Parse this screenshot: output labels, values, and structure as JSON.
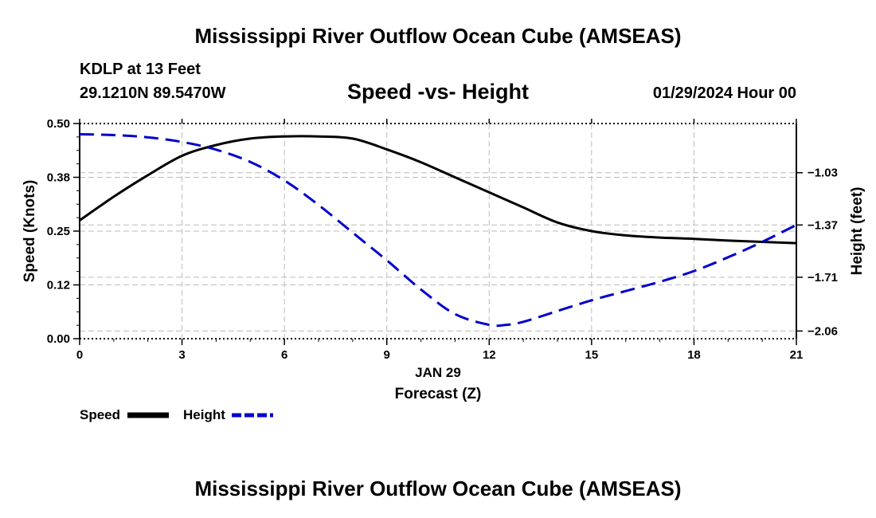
{
  "header": {
    "title": "Mississippi River Outflow Ocean Cube (AMSEAS)",
    "station": "KDLP at 13 Feet",
    "coords": "29.1210N  89.5470W",
    "subtitle": "Speed -vs- Height",
    "datetime": "01/29/2024 Hour 00"
  },
  "footer": {
    "title": "Mississippi River Outflow Ocean Cube (AMSEAS)"
  },
  "colors": {
    "speed": "#000000",
    "height": "#0000cc",
    "grid": "#bbbbbb"
  },
  "chart_data": {
    "type": "line",
    "title": "Speed -vs- Height",
    "xlabel": "Forecast (Z)",
    "xlabel_date": "JAN 29",
    "ylabel_left": "Speed (Knots)",
    "ylabel_right": "Height (feet)",
    "x_ticks": [
      0,
      3,
      6,
      9,
      12,
      15,
      18,
      21
    ],
    "x_tick_labels": [
      "0",
      "3",
      "6",
      "9",
      "12",
      "15",
      "18",
      "21"
    ],
    "xlim": [
      0,
      21
    ],
    "ylim_left": [
      0,
      0.5
    ],
    "y_left_ticks": [
      0.0,
      0.125,
      0.25,
      0.375,
      0.5
    ],
    "y_left_tick_labels": [
      "0.00",
      "0.12",
      "0.25",
      "0.38",
      "0.50"
    ],
    "ylim_right": [
      -2.11,
      -0.71
    ],
    "y_right_ticks": [
      -2.06,
      -1.71,
      -1.37,
      -1.03
    ],
    "y_right_tick_labels": [
      "−2.06",
      "−1.71",
      "−1.37",
      "−1.03"
    ],
    "grid": true,
    "legend_position": "bottom-left",
    "series": [
      {
        "name": "Speed",
        "axis": "left",
        "style": "solid",
        "x": [
          0,
          1,
          2,
          3,
          4,
          5,
          6,
          7,
          8,
          9,
          10,
          11,
          12,
          13,
          14,
          15,
          16,
          17,
          18,
          19,
          20,
          21
        ],
        "values": [
          0.275,
          0.33,
          0.38,
          0.425,
          0.45,
          0.465,
          0.47,
          0.47,
          0.465,
          0.44,
          0.41,
          0.375,
          0.34,
          0.305,
          0.27,
          0.25,
          0.24,
          0.235,
          0.232,
          0.228,
          0.225,
          0.222
        ]
      },
      {
        "name": "Height",
        "axis": "right",
        "style": "dashed",
        "x": [
          0,
          1,
          2,
          3,
          4,
          5,
          6,
          7,
          8,
          9,
          10,
          11,
          12,
          12.5,
          13,
          14,
          15,
          16,
          17,
          18,
          19,
          20,
          21
        ],
        "values": [
          -0.78,
          -0.785,
          -0.8,
          -0.83,
          -0.88,
          -0.96,
          -1.08,
          -1.24,
          -1.42,
          -1.6,
          -1.79,
          -1.95,
          -2.02,
          -2.02,
          -2.0,
          -1.93,
          -1.86,
          -1.8,
          -1.74,
          -1.67,
          -1.58,
          -1.48,
          -1.37
        ]
      }
    ]
  }
}
